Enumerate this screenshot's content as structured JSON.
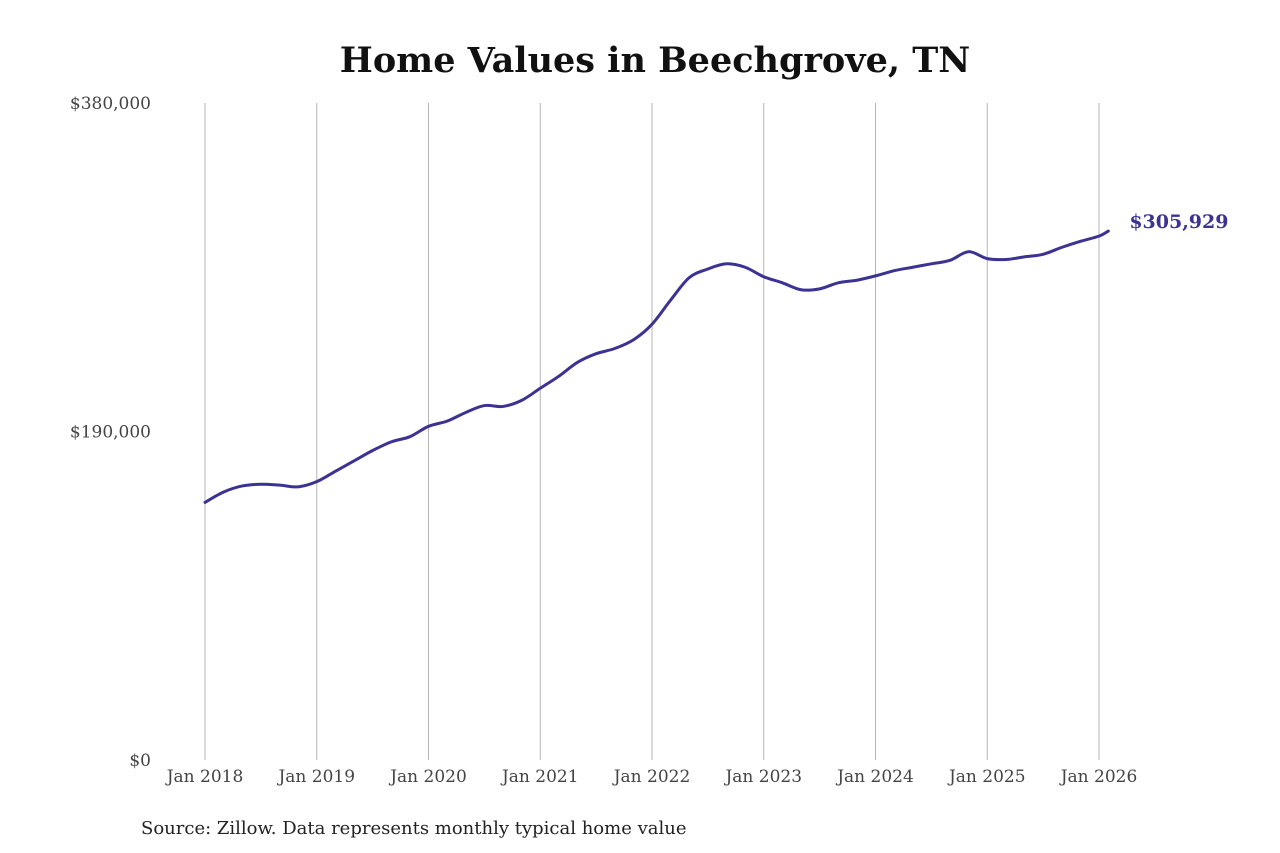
{
  "chart_data": {
    "type": "line",
    "title": "Home Values in Beechgrove, TN",
    "xlabel": "",
    "ylabel": "",
    "ylim": [
      0,
      380000
    ],
    "y_ticks": [
      {
        "value": 0,
        "label": "$0"
      },
      {
        "value": 190000,
        "label": "$190,000"
      },
      {
        "value": 380000,
        "label": "$380,000"
      }
    ],
    "x_ticks": [
      {
        "value": "2018-01",
        "label": "Jan 2018"
      },
      {
        "value": "2019-01",
        "label": "Jan 2019"
      },
      {
        "value": "2020-01",
        "label": "Jan 2020"
      },
      {
        "value": "2021-01",
        "label": "Jan 2021"
      },
      {
        "value": "2022-01",
        "label": "Jan 2022"
      },
      {
        "value": "2023-01",
        "label": "Jan 2023"
      },
      {
        "value": "2024-01",
        "label": "Jan 2024"
      },
      {
        "value": "2025-01",
        "label": "Jan 2025"
      },
      {
        "value": "2026-01",
        "label": "Jan 2026"
      }
    ],
    "grid": {
      "vertical": true,
      "horizontal": false
    },
    "line_color": "#3b3294",
    "series": [
      {
        "x": [
          "2018-01",
          "2018-03",
          "2018-05",
          "2018-07",
          "2018-09",
          "2018-11",
          "2019-01",
          "2019-03",
          "2019-05",
          "2019-07",
          "2019-09",
          "2019-11",
          "2020-01",
          "2020-03",
          "2020-05",
          "2020-07",
          "2020-09",
          "2020-11",
          "2021-01",
          "2021-03",
          "2021-05",
          "2021-07",
          "2021-09",
          "2021-11",
          "2022-01",
          "2022-03",
          "2022-05",
          "2022-07",
          "2022-09",
          "2022-11",
          "2023-01",
          "2023-03",
          "2023-05",
          "2023-07",
          "2023-09",
          "2023-11",
          "2024-01",
          "2024-03",
          "2024-05",
          "2024-07",
          "2024-09",
          "2024-11",
          "2025-01",
          "2025-03",
          "2025-05",
          "2025-07",
          "2025-09",
          "2025-11",
          "2026-01",
          "2026-02"
        ],
        "values": [
          149000,
          155000,
          158500,
          159500,
          159000,
          158000,
          161000,
          167000,
          173000,
          179000,
          184000,
          187000,
          193000,
          196000,
          201000,
          205000,
          204500,
          208000,
          215000,
          222000,
          230000,
          235000,
          238000,
          243000,
          252000,
          266000,
          279000,
          284000,
          287000,
          285000,
          279500,
          276000,
          272000,
          272500,
          276000,
          277500,
          280000,
          283000,
          285000,
          287000,
          289000,
          294000,
          290000,
          289500,
          291000,
          292500,
          296500,
          300000,
          303000,
          305929
        ]
      }
    ],
    "annotations": [
      {
        "text": "$305,929",
        "x": "2026-02",
        "y": 305929
      }
    ]
  },
  "source": "Source: Zillow. Data represents monthly typical home value"
}
